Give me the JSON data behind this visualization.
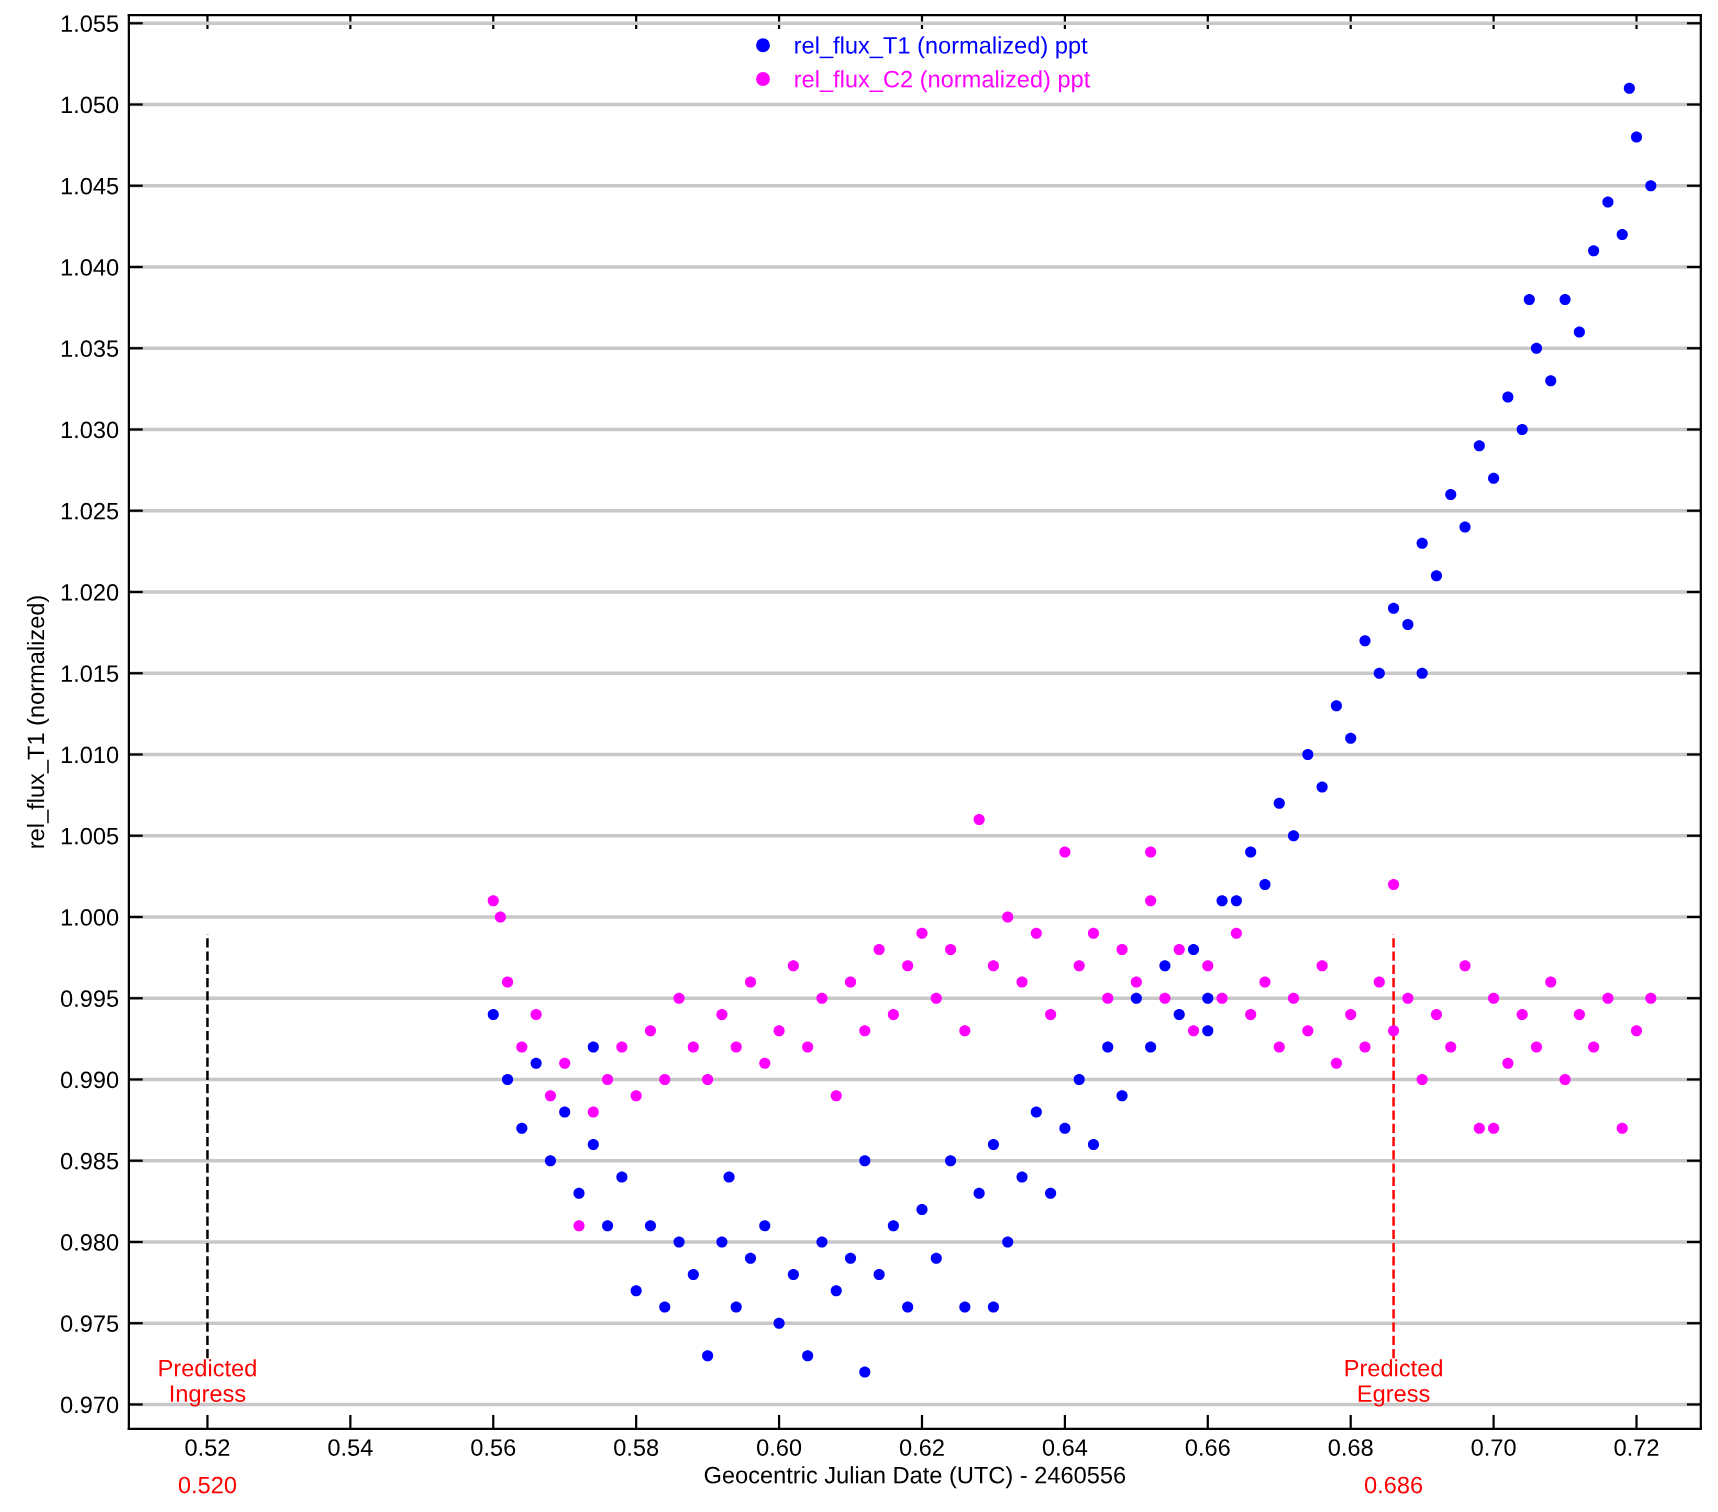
{
  "chart_data": {
    "type": "scatter",
    "xlabel": "Geocentric Julian Date (UTC) - 2460556",
    "ylabel": "rel_flux_T1 (normalized)",
    "xlim": [
      0.509,
      0.729
    ],
    "ylim": [
      0.9685,
      1.0555
    ],
    "xticks": [
      0.52,
      0.54,
      0.56,
      0.58,
      {
        "value": 0.6,
        "label": "0.60"
      },
      0.62,
      0.64,
      0.66,
      0.68,
      {
        "value": 0.7,
        "label": "0.70"
      },
      0.72
    ],
    "yticks": [
      {
        "value": 0.97,
        "label": "0.970"
      },
      {
        "value": 0.975,
        "label": "0.975"
      },
      {
        "value": 0.98,
        "label": "0.980"
      },
      {
        "value": 0.985,
        "label": "0.985"
      },
      {
        "value": 0.99,
        "label": "0.990"
      },
      {
        "value": 0.995,
        "label": "0.995"
      },
      {
        "value": 1.0,
        "label": "1.000"
      },
      {
        "value": 1.005,
        "label": "1.005"
      },
      {
        "value": 1.01,
        "label": "1.010"
      },
      {
        "value": 1.015,
        "label": "1.015"
      },
      {
        "value": 1.02,
        "label": "1.020"
      },
      {
        "value": 1.025,
        "label": "1.025"
      },
      {
        "value": 1.03,
        "label": "1.030"
      },
      {
        "value": 1.035,
        "label": "1.035"
      },
      {
        "value": 1.04,
        "label": "1.040"
      },
      {
        "value": 1.045,
        "label": "1.045"
      },
      {
        "value": 1.05,
        "label": "1.050"
      },
      {
        "value": 1.055,
        "label": "1.055"
      }
    ],
    "grid": "y",
    "legend": "top",
    "marker": "circle",
    "ref_lines": [
      {
        "axis": "x",
        "value": 0.52,
        "label": "Predicted\nIngress",
        "color": "#000000",
        "line_style": "dashed"
      },
      {
        "axis": "x",
        "value": 0.686,
        "label": "Predicted\nEgress",
        "color": "#ff0000",
        "line_style": "dashed"
      }
    ],
    "annotations": [
      "0.520",
      "0.686"
    ],
    "series": [
      {
        "name": "rel_flux_T1 (normalized) ppt",
        "color": "#0000ff",
        "x": [
          0.56,
          0.562,
          0.564,
          0.566,
          0.568,
          0.57,
          0.572,
          0.574,
          0.576,
          0.578,
          0.58,
          0.582,
          0.584,
          0.586,
          0.588,
          0.59,
          0.592,
          0.594,
          0.596,
          0.598,
          0.6,
          0.602,
          0.604,
          0.606,
          0.608,
          0.61,
          0.612,
          0.614,
          0.616,
          0.618,
          0.62,
          0.622,
          0.624,
          0.626,
          0.628,
          0.63,
          0.632,
          0.634,
          0.636,
          0.638,
          0.64,
          0.642,
          0.644,
          0.646,
          0.648,
          0.65,
          0.652,
          0.654,
          0.656,
          0.658,
          0.66,
          0.662,
          0.664,
          0.666,
          0.668,
          0.67,
          0.672,
          0.674,
          0.676,
          0.678,
          0.68,
          0.682,
          0.684,
          0.686,
          0.688,
          0.69,
          0.692,
          0.694,
          0.696,
          0.698,
          0.7,
          0.702,
          0.704,
          0.706,
          0.708,
          0.71,
          0.712,
          0.714,
          0.716,
          0.718,
          0.72,
          0.722,
          0.719,
          0.574,
          0.593,
          0.612,
          0.63,
          0.66,
          0.69,
          0.705
        ],
        "values": [
          0.994,
          0.99,
          0.987,
          0.991,
          0.985,
          0.988,
          0.983,
          0.986,
          0.981,
          0.984,
          0.977,
          0.981,
          0.976,
          0.98,
          0.978,
          0.973,
          0.98,
          0.976,
          0.979,
          0.981,
          0.975,
          0.978,
          0.973,
          0.98,
          0.977,
          0.979,
          0.972,
          0.978,
          0.981,
          0.976,
          0.982,
          0.979,
          0.985,
          0.976,
          0.983,
          0.986,
          0.98,
          0.984,
          0.988,
          0.983,
          0.987,
          0.99,
          0.986,
          0.992,
          0.989,
          0.995,
          0.992,
          0.997,
          0.994,
          0.998,
          0.995,
          1.001,
          1.001,
          1.004,
          1.002,
          1.007,
          1.005,
          1.01,
          1.008,
          1.013,
          1.011,
          1.017,
          1.015,
          1.019,
          1.018,
          1.023,
          1.021,
          1.026,
          1.024,
          1.029,
          1.027,
          1.032,
          1.03,
          1.035,
          1.033,
          1.038,
          1.036,
          1.041,
          1.044,
          1.042,
          1.048,
          1.045,
          1.051,
          0.992,
          0.984,
          0.985,
          0.976,
          0.993,
          1.015,
          1.038
        ]
      },
      {
        "name": "rel_flux_C2 (normalized) ppt",
        "color": "#ff00ff",
        "x": [
          0.56,
          0.562,
          0.564,
          0.566,
          0.568,
          0.57,
          0.572,
          0.574,
          0.576,
          0.578,
          0.58,
          0.582,
          0.584,
          0.586,
          0.588,
          0.59,
          0.592,
          0.594,
          0.596,
          0.598,
          0.6,
          0.602,
          0.604,
          0.606,
          0.608,
          0.61,
          0.612,
          0.614,
          0.616,
          0.618,
          0.62,
          0.622,
          0.624,
          0.626,
          0.628,
          0.63,
          0.632,
          0.634,
          0.636,
          0.638,
          0.64,
          0.642,
          0.644,
          0.646,
          0.648,
          0.65,
          0.652,
          0.654,
          0.656,
          0.658,
          0.66,
          0.662,
          0.664,
          0.666,
          0.668,
          0.67,
          0.672,
          0.674,
          0.676,
          0.678,
          0.68,
          0.682,
          0.684,
          0.686,
          0.688,
          0.69,
          0.692,
          0.694,
          0.696,
          0.698,
          0.7,
          0.702,
          0.704,
          0.706,
          0.708,
          0.71,
          0.712,
          0.714,
          0.716,
          0.718,
          0.72,
          0.722,
          0.652,
          0.686,
          0.7,
          0.561
        ],
        "values": [
          1.001,
          0.996,
          0.992,
          0.994,
          0.989,
          0.991,
          0.981,
          0.988,
          0.99,
          0.992,
          0.989,
          0.993,
          0.99,
          0.995,
          0.992,
          0.99,
          0.994,
          0.992,
          0.996,
          0.991,
          0.993,
          0.997,
          0.992,
          0.995,
          0.989,
          0.996,
          0.993,
          0.998,
          0.994,
          0.997,
          0.999,
          0.995,
          0.998,
          0.993,
          1.006,
          0.997,
          1.0,
          0.996,
          0.999,
          0.994,
          1.004,
          0.997,
          0.999,
          0.995,
          0.998,
          0.996,
          1.001,
          0.995,
          0.998,
          0.993,
          0.997,
          0.995,
          0.999,
          0.994,
          0.996,
          0.992,
          0.995,
          0.993,
          0.997,
          0.991,
          0.994,
          0.992,
          0.996,
          0.993,
          0.995,
          0.99,
          0.994,
          0.992,
          0.997,
          0.987,
          0.995,
          0.991,
          0.994,
          0.992,
          0.996,
          0.99,
          0.994,
          0.992,
          0.995,
          0.987,
          0.993,
          0.995,
          1.004,
          1.002,
          0.987,
          1.0
        ]
      }
    ]
  }
}
